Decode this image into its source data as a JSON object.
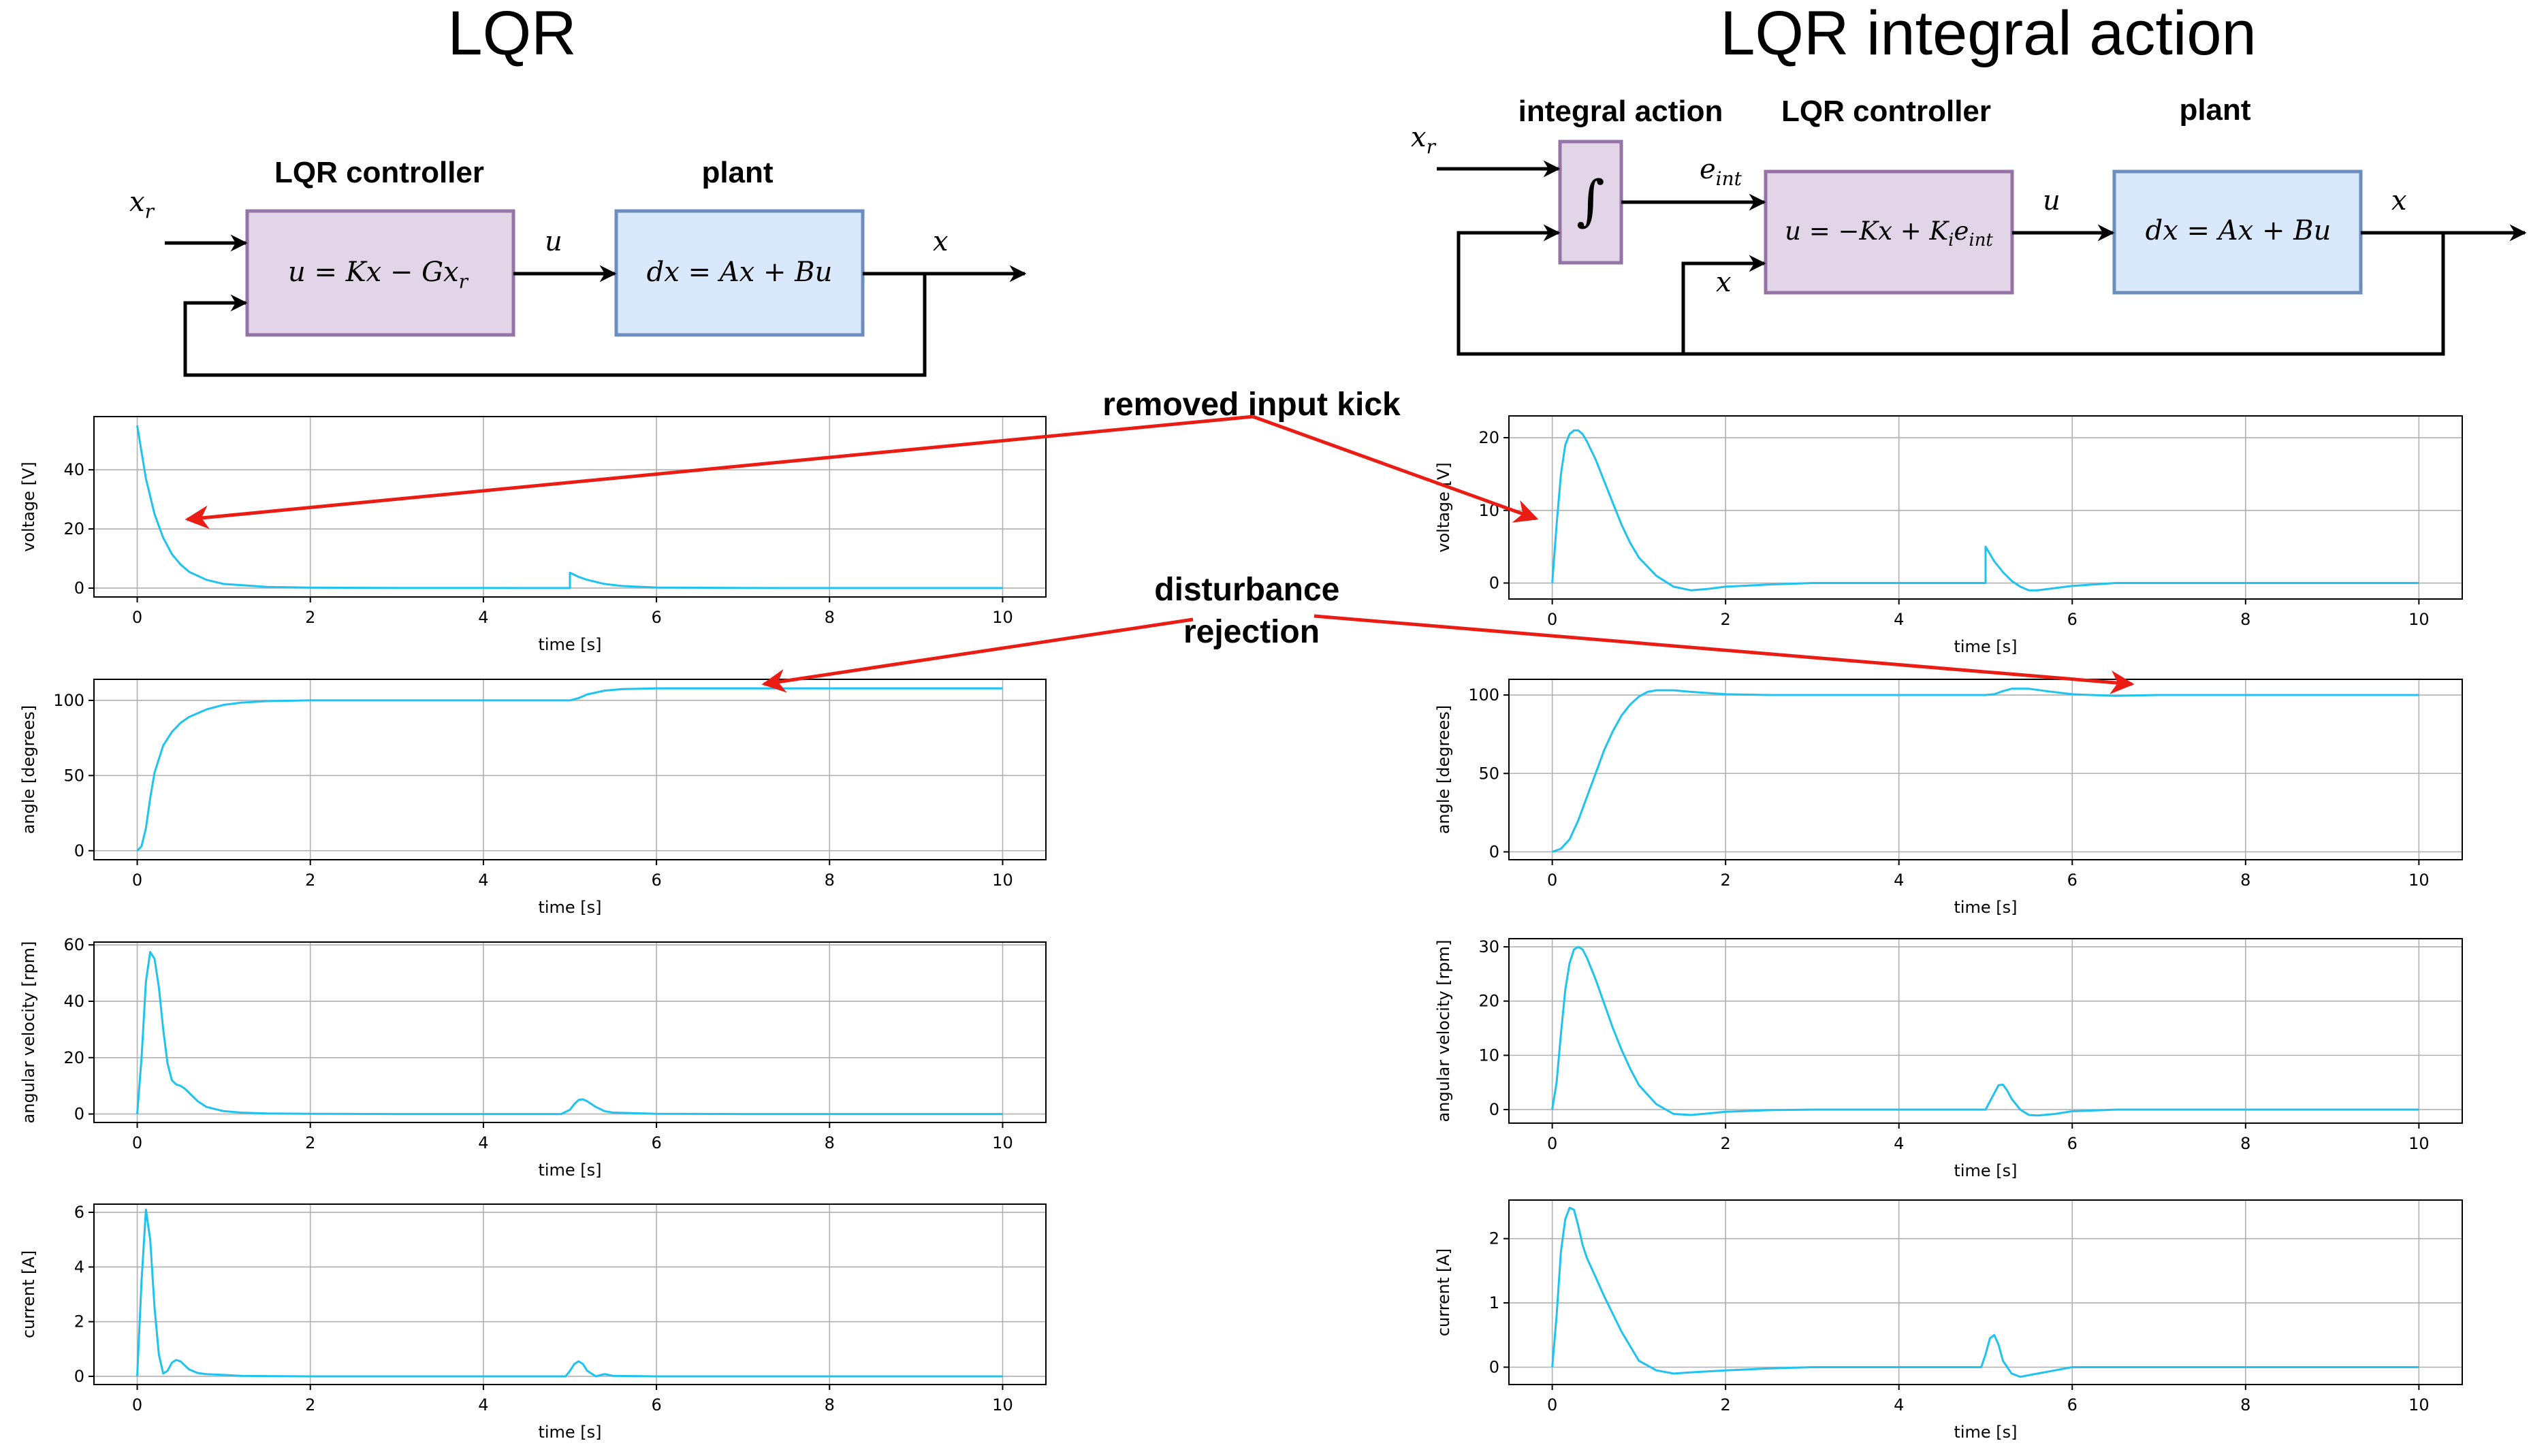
{
  "titles": {
    "left": "LQR",
    "right": "LQR integral action"
  },
  "left_diagram": {
    "controller_label": "LQR controller",
    "plant_label": "plant",
    "controller_eq": "u = Kx − Gx",
    "controller_eq_sub": "r",
    "plant_eq": "dx = Ax + Bu",
    "input_signal": "x",
    "input_signal_sub": "r",
    "u_signal": "u",
    "output_signal": "x"
  },
  "right_diagram": {
    "integral_label": "integral action",
    "controller_label": "LQR controller",
    "plant_label": "plant",
    "integral_symbol": "∫",
    "controller_eq_main": "u = −Kx + K",
    "controller_eq_sub1": "i",
    "controller_eq_mid": "e",
    "controller_eq_sub2": "int",
    "plant_eq": "dx = Ax + Bu",
    "input_signal": "x",
    "input_signal_sub": "r",
    "error_signal": "e",
    "error_signal_sub": "int",
    "feedback_signal": "x",
    "u_signal": "u",
    "output_signal": "x"
  },
  "annotations": {
    "kick": "removed input kick",
    "disturbance_line1": "disturbance",
    "disturbance_line2": "rejection"
  },
  "chart_data": [
    {
      "type": "line",
      "id": "lqr-voltage",
      "xlabel": "time [s]",
      "ylabel": "voltage [V]",
      "xlim": [
        -0.5,
        10.5
      ],
      "ylim": [
        -3,
        58
      ],
      "xticks": [
        0,
        2,
        4,
        6,
        8,
        10
      ],
      "yticks": [
        0,
        20,
        40
      ],
      "grid": true,
      "x": [
        0,
        0.1,
        0.2,
        0.3,
        0.4,
        0.5,
        0.6,
        0.8,
        1.0,
        1.5,
        2.0,
        3.0,
        4.0,
        5.0,
        5.0,
        5.1,
        5.2,
        5.4,
        5.6,
        6.0,
        7.0,
        8.0,
        10.0
      ],
      "series": [
        {
          "values": [
            55,
            37,
            25,
            17,
            11.5,
            8,
            5.5,
            2.8,
            1.4,
            0.4,
            0.15,
            0.05,
            0.03,
            0.02,
            5.2,
            3.8,
            2.8,
            1.4,
            0.7,
            0.2,
            0.05,
            0.02,
            0.02
          ]
        }
      ]
    },
    {
      "type": "line",
      "id": "lqr-angle",
      "xlabel": "time [s]",
      "ylabel": "angle [degrees]",
      "xlim": [
        -0.5,
        10.5
      ],
      "ylim": [
        -6,
        114
      ],
      "xticks": [
        0,
        2,
        4,
        6,
        8,
        10
      ],
      "yticks": [
        0,
        50,
        100
      ],
      "grid": true,
      "x": [
        0,
        0.05,
        0.1,
        0.15,
        0.2,
        0.3,
        0.4,
        0.5,
        0.6,
        0.8,
        1.0,
        1.2,
        1.5,
        2.0,
        3.0,
        4.0,
        5.0,
        5.1,
        5.2,
        5.4,
        5.6,
        6.0,
        7.0,
        8.0,
        10.0
      ],
      "series": [
        {
          "values": [
            0,
            3,
            15,
            35,
            52,
            70,
            79,
            85,
            89,
            94,
            97,
            98.5,
            99.5,
            100,
            100,
            100,
            100,
            101.5,
            104,
            106.5,
            107.5,
            108,
            108,
            108,
            108
          ]
        }
      ]
    },
    {
      "type": "line",
      "id": "lqr-angular-velocity",
      "xlabel": "time [s]",
      "ylabel": "angular velocity [rpm]",
      "xlim": [
        -0.5,
        10.5
      ],
      "ylim": [
        -3,
        61
      ],
      "xticks": [
        0,
        2,
        4,
        6,
        8,
        10
      ],
      "yticks": [
        0,
        20,
        40,
        60
      ],
      "grid": true,
      "x": [
        0,
        0.05,
        0.1,
        0.15,
        0.2,
        0.25,
        0.3,
        0.35,
        0.4,
        0.45,
        0.5,
        0.55,
        0.6,
        0.7,
        0.8,
        1.0,
        1.2,
        1.5,
        2.0,
        3.0,
        4.0,
        4.9,
        5.0,
        5.05,
        5.1,
        5.15,
        5.2,
        5.3,
        5.4,
        5.5,
        6.0,
        7.0,
        10.0
      ],
      "series": [
        {
          "values": [
            0,
            20,
            47,
            57.5,
            55,
            45,
            30,
            18,
            12,
            10.5,
            10,
            9,
            7.5,
            4.5,
            2.5,
            1,
            0.5,
            0.2,
            0.1,
            0,
            0,
            0,
            1.5,
            3.5,
            5,
            5.2,
            4.5,
            2.5,
            1,
            0.5,
            0.1,
            0,
            0
          ]
        }
      ]
    },
    {
      "type": "line",
      "id": "lqr-current",
      "xlabel": "time [s]",
      "ylabel": "current [A]",
      "xlim": [
        -0.5,
        10.5
      ],
      "ylim": [
        -0.3,
        6.3
      ],
      "xticks": [
        0,
        2,
        4,
        6,
        8,
        10
      ],
      "yticks": [
        0,
        2,
        4,
        6
      ],
      "grid": true,
      "x": [
        0,
        0.05,
        0.1,
        0.15,
        0.2,
        0.25,
        0.3,
        0.35,
        0.4,
        0.45,
        0.5,
        0.55,
        0.6,
        0.7,
        0.8,
        1.0,
        1.2,
        1.5,
        2.0,
        4.0,
        4.95,
        5.0,
        5.05,
        5.1,
        5.15,
        5.2,
        5.3,
        5.4,
        5.5,
        6.0,
        10.0
      ],
      "series": [
        {
          "values": [
            0,
            3.5,
            6.1,
            5,
            2.5,
            0.8,
            0.1,
            0.2,
            0.5,
            0.6,
            0.55,
            0.4,
            0.25,
            0.12,
            0.08,
            0.05,
            0.02,
            0.01,
            0,
            0,
            0,
            0.2,
            0.45,
            0.55,
            0.45,
            0.2,
            0,
            0.08,
            0.02,
            0,
            0
          ]
        }
      ]
    },
    {
      "type": "line",
      "id": "ia-voltage",
      "xlabel": "time [s]",
      "ylabel": "voltage [V]",
      "xlim": [
        -0.5,
        10.5
      ],
      "ylim": [
        -2.2,
        23
      ],
      "xticks": [
        0,
        2,
        4,
        6,
        8,
        10
      ],
      "yticks": [
        0,
        10,
        20
      ],
      "grid": true,
      "x": [
        0,
        0.05,
        0.1,
        0.15,
        0.2,
        0.25,
        0.3,
        0.35,
        0.4,
        0.5,
        0.6,
        0.7,
        0.8,
        0.9,
        1.0,
        1.2,
        1.4,
        1.6,
        1.8,
        2.0,
        2.5,
        3.0,
        4.0,
        5.0,
        5.0,
        5.1,
        5.2,
        5.3,
        5.4,
        5.5,
        5.6,
        5.8,
        6.0,
        6.5,
        7.0,
        8.0,
        10.0
      ],
      "series": [
        {
          "values": [
            0,
            8,
            15,
            19,
            20.5,
            21,
            21,
            20.5,
            19.5,
            17,
            14,
            11,
            8,
            5.5,
            3.5,
            1,
            -0.5,
            -1,
            -0.8,
            -0.5,
            -0.2,
            0,
            0,
            0,
            5,
            3,
            1.5,
            0.3,
            -0.5,
            -1,
            -1,
            -0.7,
            -0.4,
            0,
            0,
            0,
            0
          ]
        }
      ]
    },
    {
      "type": "line",
      "id": "ia-angle",
      "xlabel": "time [s]",
      "ylabel": "angle [degrees]",
      "xlim": [
        -0.5,
        10.5
      ],
      "ylim": [
        -5,
        110
      ],
      "xticks": [
        0,
        2,
        4,
        6,
        8,
        10
      ],
      "yticks": [
        0,
        50,
        100
      ],
      "grid": true,
      "x": [
        0,
        0.1,
        0.2,
        0.3,
        0.4,
        0.5,
        0.6,
        0.7,
        0.8,
        0.9,
        1.0,
        1.1,
        1.2,
        1.4,
        1.6,
        2.0,
        2.5,
        3.0,
        4.0,
        5.0,
        5.1,
        5.2,
        5.3,
        5.5,
        5.7,
        6.0,
        6.5,
        7.0,
        8.0,
        10.0
      ],
      "series": [
        {
          "values": [
            0,
            2,
            8,
            20,
            35,
            50,
            65,
            77,
            87,
            94,
            99,
            102,
            103,
            103,
            102,
            100.5,
            100,
            100,
            100,
            100,
            100.5,
            102.5,
            104,
            104,
            102.5,
            100.5,
            99.5,
            100,
            100,
            100
          ]
        }
      ]
    },
    {
      "type": "line",
      "id": "ia-angular-velocity",
      "xlabel": "time [s]",
      "ylabel": "angular velocity [rpm]",
      "xlim": [
        -0.5,
        10.5
      ],
      "ylim": [
        -2.5,
        31.5
      ],
      "xticks": [
        0,
        2,
        4,
        6,
        8,
        10
      ],
      "yticks": [
        0,
        10,
        20,
        30
      ],
      "grid": true,
      "x": [
        0,
        0.05,
        0.1,
        0.15,
        0.2,
        0.25,
        0.3,
        0.35,
        0.4,
        0.5,
        0.6,
        0.7,
        0.8,
        0.9,
        1.0,
        1.2,
        1.4,
        1.6,
        1.8,
        2.0,
        2.5,
        3.0,
        4.0,
        5.0,
        5.1,
        5.15,
        5.2,
        5.25,
        5.3,
        5.4,
        5.5,
        5.6,
        5.8,
        6.0,
        6.5,
        7.0,
        10.0
      ],
      "series": [
        {
          "values": [
            0,
            5,
            14,
            22,
            27,
            29.5,
            30,
            29.5,
            28,
            24,
            19.5,
            15,
            11,
            7.5,
            4.5,
            1,
            -0.8,
            -1,
            -0.7,
            -0.4,
            -0.1,
            0,
            0,
            0,
            3,
            4.5,
            4.6,
            3.5,
            2,
            0,
            -1,
            -1.1,
            -0.8,
            -0.3,
            0,
            0,
            0
          ]
        }
      ]
    },
    {
      "type": "line",
      "id": "ia-current",
      "xlabel": "time [s]",
      "ylabel": "current [A]",
      "xlim": [
        -0.5,
        10.5
      ],
      "ylim": [
        -0.27,
        2.6
      ],
      "xticks": [
        0,
        2,
        4,
        6,
        8,
        10
      ],
      "yticks": [
        0,
        1,
        2
      ],
      "grid": true,
      "x": [
        0,
        0.05,
        0.1,
        0.15,
        0.2,
        0.25,
        0.3,
        0.35,
        0.4,
        0.5,
        0.6,
        0.8,
        1.0,
        1.2,
        1.4,
        1.6,
        2.0,
        2.5,
        3.0,
        4.0,
        4.95,
        5.0,
        5.05,
        5.1,
        5.15,
        5.2,
        5.3,
        5.4,
        5.6,
        5.8,
        6.0,
        7.0,
        10.0
      ],
      "series": [
        {
          "values": [
            0,
            0.8,
            1.8,
            2.3,
            2.48,
            2.45,
            2.2,
            1.9,
            1.7,
            1.4,
            1.1,
            0.55,
            0.1,
            -0.05,
            -0.1,
            -0.08,
            -0.05,
            -0.02,
            0,
            0,
            0,
            0.2,
            0.45,
            0.5,
            0.35,
            0.1,
            -0.1,
            -0.15,
            -0.1,
            -0.05,
            0,
            0,
            0
          ]
        }
      ]
    }
  ]
}
